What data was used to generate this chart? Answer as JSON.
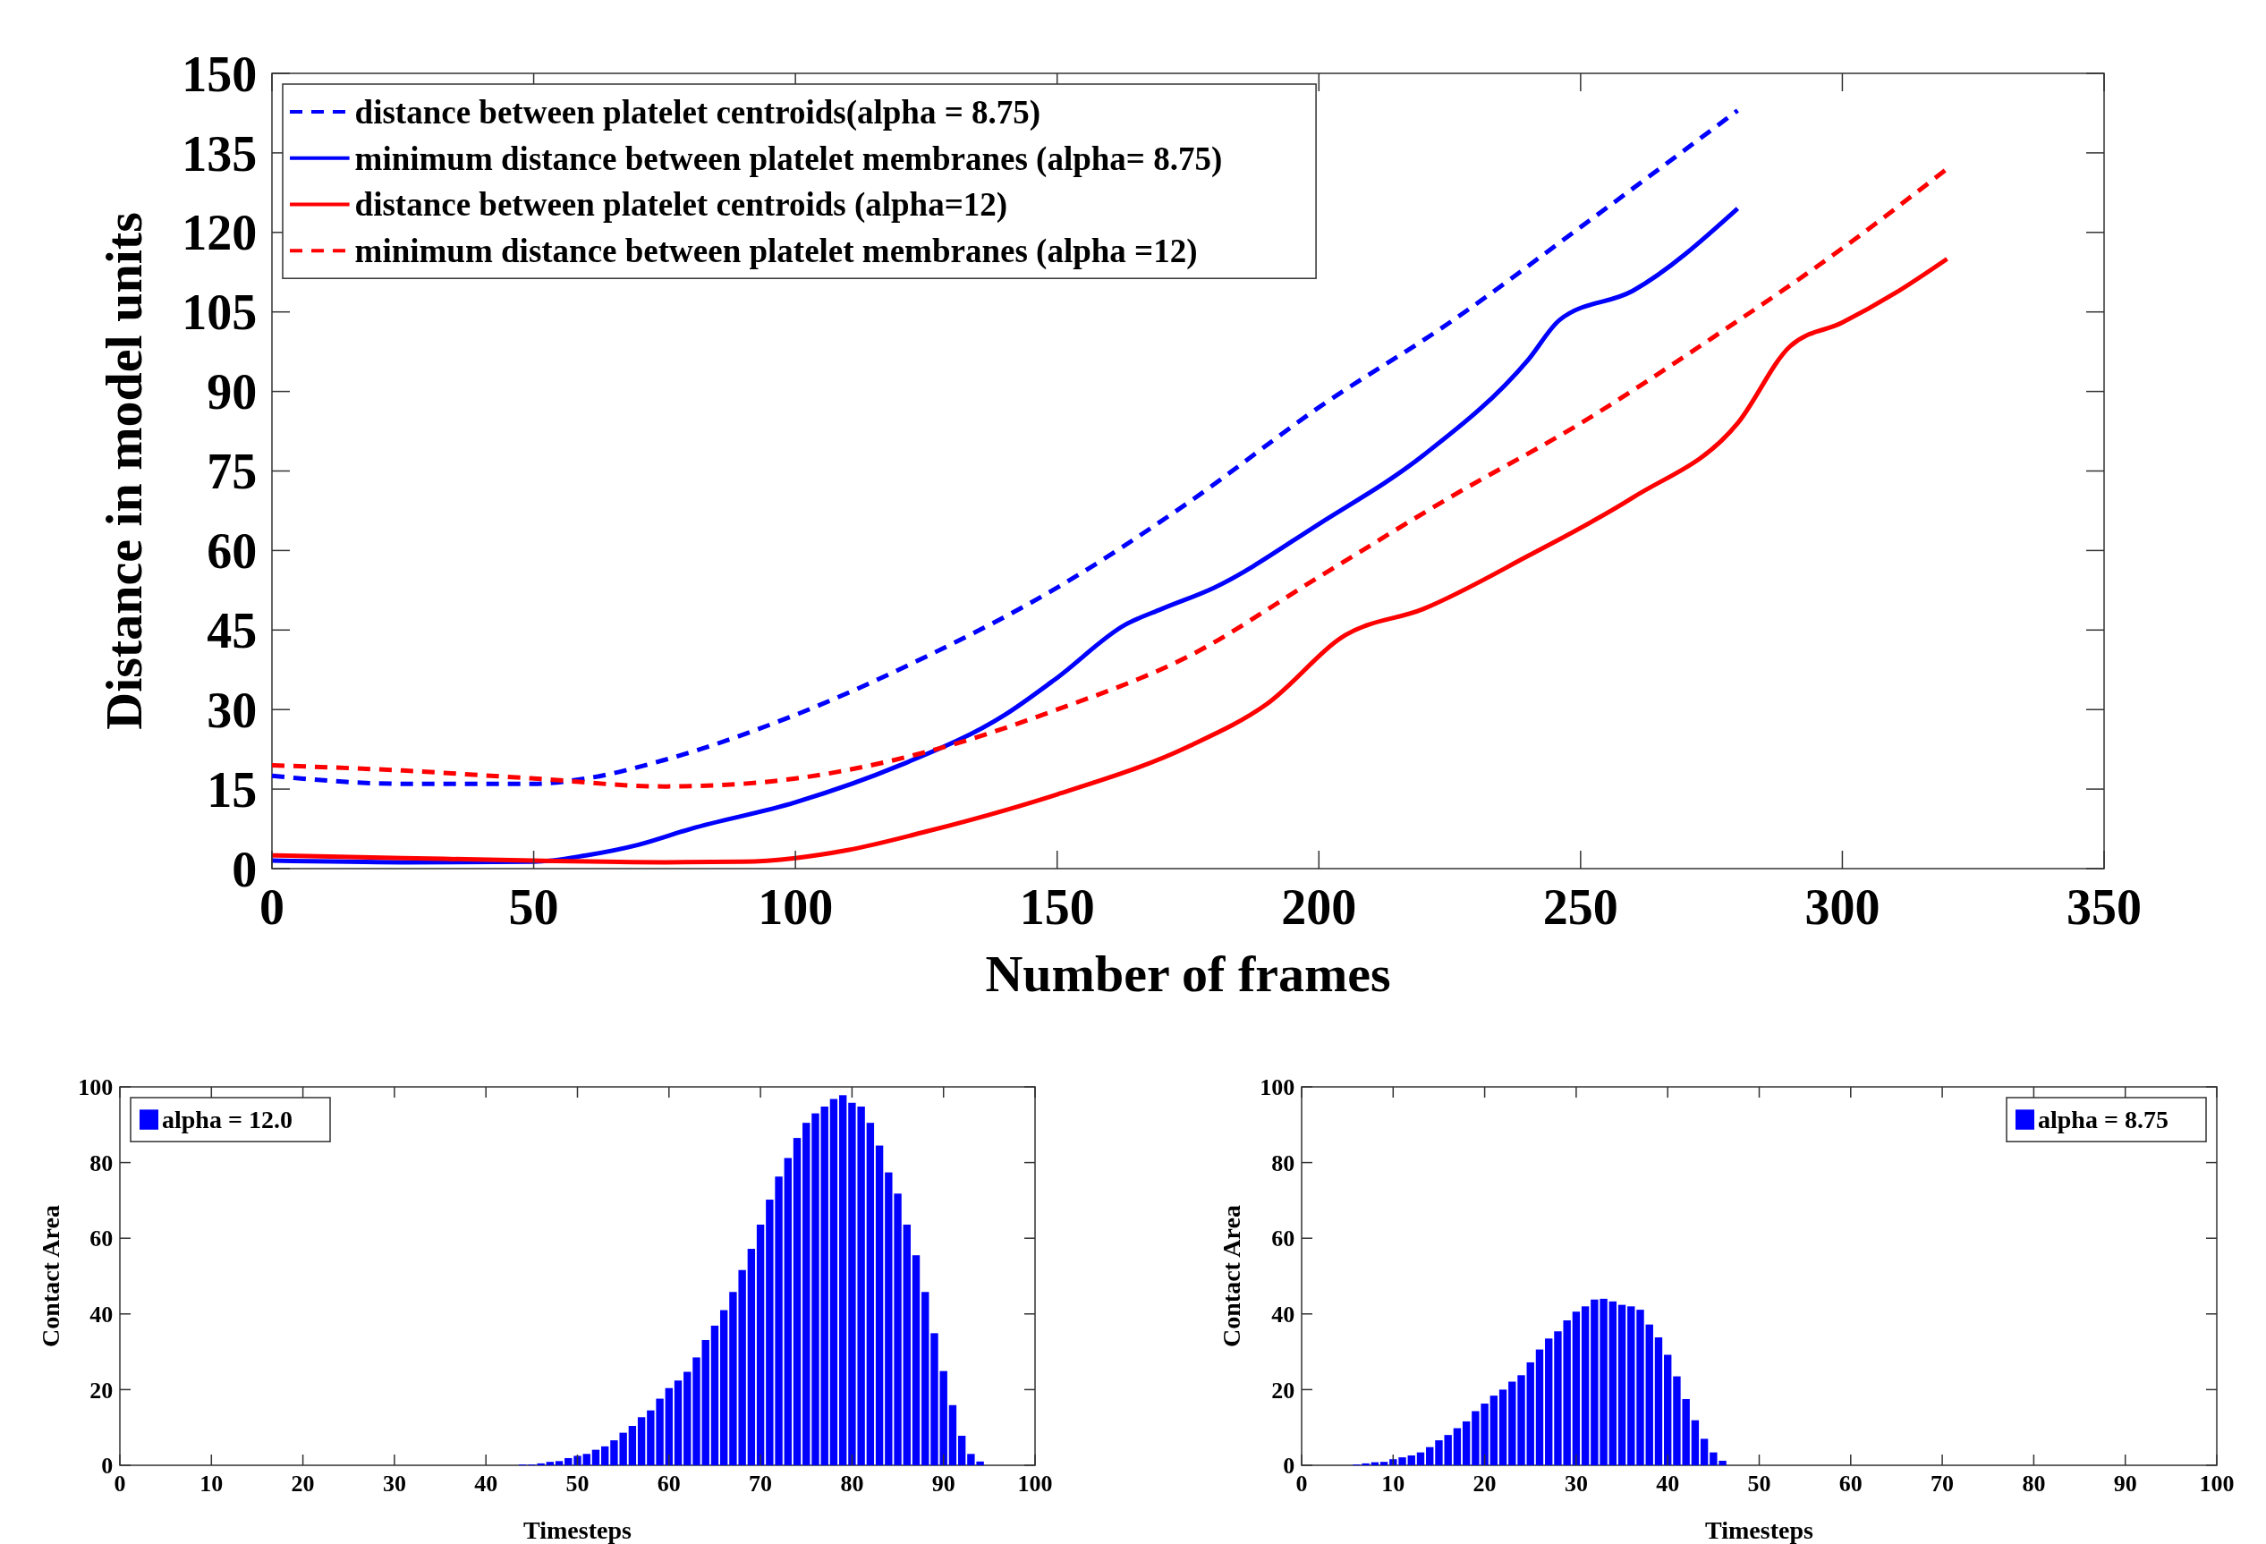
{
  "chart_data": [
    {
      "type": "line",
      "xlabel": "Number of frames",
      "ylabel": "Distance in model units",
      "xlim": [
        0,
        350
      ],
      "xticks": [
        0,
        50,
        100,
        150,
        200,
        250,
        300,
        350
      ],
      "ylim": [
        0,
        150
      ],
      "yticks": [
        0,
        15,
        30,
        45,
        60,
        75,
        90,
        105,
        120,
        135,
        150
      ],
      "grid": false,
      "legend": "top left",
      "series": [
        {
          "name": "distance between platelet centroids(alpha = 8.75)",
          "color": "#0000ff",
          "line_style": "dashed",
          "x": [
            0,
            25,
            50,
            60,
            75,
            100,
            125,
            150,
            175,
            200,
            225,
            250,
            280
          ],
          "values": [
            17.5,
            16,
            16,
            17,
            20.5,
            29,
            40,
            53,
            69,
            87,
            103,
            121,
            143
          ]
        },
        {
          "name": "minimum distance between platelet membranes (alpha= 8.75)",
          "color": "#0000ff",
          "line_style": "solid",
          "x": [
            0,
            25,
            50,
            60,
            70,
            80,
            100,
            120,
            140,
            150,
            163,
            170,
            180,
            200,
            220,
            240,
            246,
            260,
            280
          ],
          "values": [
            1.5,
            1.2,
            1.3,
            2.5,
            4.5,
            7.5,
            12.5,
            19.5,
            29,
            36,
            46,
            49,
            53,
            65,
            78,
            96,
            103.5,
            109,
            124.5
          ]
        },
        {
          "name": "distance between platelet centroids (alpha=12)",
          "color": "#ff0000",
          "line_style": "solid",
          "x": [
            0,
            25,
            50,
            75,
            90,
            100,
            110,
            125,
            140,
            150,
            175,
            190,
            205,
            220,
            240,
            260,
            280,
            290,
            300,
            310,
            320
          ],
          "values": [
            2.5,
            2,
            1.5,
            1.2,
            1.3,
            2,
            3.5,
            7,
            11,
            14,
            23,
            31,
            44,
            49,
            59,
            70,
            84,
            98.5,
            103,
            108.5,
            115
          ]
        },
        {
          "name": "minimum distance between platelet membranes (alpha =12)",
          "color": "#ff0000",
          "line_style": "dashed",
          "x": [
            0,
            25,
            50,
            75,
            90,
            100,
            125,
            150,
            175,
            200,
            225,
            250,
            275,
            300,
            320
          ],
          "values": [
            19.5,
            18.5,
            17,
            15.5,
            16,
            17,
            22,
            30,
            40,
            55,
            70,
            84,
            100,
            117,
            132
          ]
        }
      ]
    },
    {
      "type": "bar",
      "xlabel": "Timesteps",
      "ylabel": "Contact Area",
      "xlim": [
        0,
        100
      ],
      "xticks": [
        0,
        10,
        20,
        30,
        40,
        50,
        60,
        70,
        80,
        90,
        100
      ],
      "ylim": [
        0,
        100
      ],
      "yticks": [
        0,
        20,
        40,
        60,
        80,
        100
      ],
      "grid": false,
      "legend": "top left",
      "series": [
        {
          "name": "alpha = 12.0",
          "color": "#0000ff",
          "x": [
            44,
            45,
            46,
            47,
            48,
            49,
            50,
            51,
            52,
            53,
            54,
            55,
            56,
            57,
            58,
            59,
            60,
            61,
            62,
            63,
            64,
            65,
            66,
            67,
            68,
            69,
            70,
            71,
            72,
            73,
            74,
            75,
            76,
            77,
            78,
            79,
            80,
            81,
            82,
            83,
            84,
            85,
            86,
            87,
            88,
            89,
            90,
            91,
            92,
            93,
            94
          ],
          "values": [
            0.2,
            0.2,
            0.5,
            0.9,
            1.1,
            1.9,
            2.5,
            3,
            4.1,
            5,
            6.6,
            8.6,
            10.4,
            12.7,
            14.5,
            17.6,
            20.4,
            22.4,
            24.7,
            28.5,
            33.1,
            36.9,
            41,
            45.8,
            51.6,
            57.2,
            63.6,
            70.2,
            76.3,
            81.2,
            86.5,
            90.5,
            93,
            94.8,
            96.8,
            97.8,
            95.8,
            94.8,
            90.5,
            84.5,
            77.4,
            71.8,
            63.6,
            55.5,
            45.8,
            34.9,
            24.9,
            15.9,
            7.8,
            3,
            1
          ]
        }
      ]
    },
    {
      "type": "bar",
      "xlabel": "Timesteps",
      "ylabel": "Contact Area",
      "xlim": [
        0,
        100
      ],
      "xticks": [
        0,
        10,
        20,
        30,
        40,
        50,
        60,
        70,
        80,
        90,
        100
      ],
      "ylim": [
        0,
        100
      ],
      "yticks": [
        0,
        20,
        40,
        60,
        80,
        100
      ],
      "grid": false,
      "legend": "top right",
      "series": [
        {
          "name": "alpha = 8.75",
          "color": "#0000ff",
          "x": [
            6,
            7,
            8,
            9,
            10,
            11,
            12,
            13,
            14,
            15,
            16,
            17,
            18,
            19,
            20,
            21,
            22,
            23,
            24,
            25,
            26,
            27,
            28,
            29,
            30,
            31,
            32,
            33,
            34,
            35,
            36,
            37,
            38,
            39,
            40,
            41,
            42,
            43,
            44,
            45,
            46
          ],
          "values": [
            0.2,
            0.5,
            0.8,
            0.9,
            1.6,
            2.1,
            2.6,
            3.4,
            4.8,
            6.6,
            8,
            9.8,
            11.6,
            14.3,
            16.3,
            18.4,
            20,
            22.1,
            23.8,
            27.2,
            30.6,
            33.5,
            35.4,
            38.3,
            40.6,
            42,
            43.8,
            44,
            43.3,
            42.4,
            42,
            41.1,
            37.2,
            33.8,
            29.2,
            23.5,
            17.5,
            11.9,
            7,
            3.4,
            1.2
          ]
        }
      ]
    }
  ]
}
